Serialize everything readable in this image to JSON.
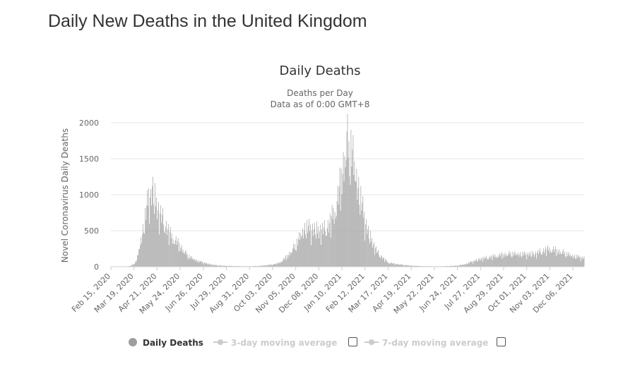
{
  "page": {
    "title": "Daily New Deaths in the United Kingdom"
  },
  "chart_data": {
    "type": "bar",
    "title": "Daily Deaths",
    "subtitle_lines": [
      "Deaths per Day",
      "Data as of 0:00 GMT+8"
    ],
    "ylabel": "Novel Coronavirus Daily Deaths",
    "xlabel": "",
    "ylim": [
      0,
      2000
    ],
    "yticks": [
      0,
      500,
      1000,
      1500,
      2000
    ],
    "grid": true,
    "legend_position": "bottom",
    "bar_color": "#9e9e9e",
    "x_tick_labels": [
      "Feb 15, 2020",
      "Mar 19, 2020",
      "Apr 21, 2020",
      "May 24, 2020",
      "Jun 26, 2020",
      "Jul 29, 2020",
      "Aug 31, 2020",
      "Oct 03, 2020",
      "Nov 05, 2020",
      "Dec 08, 2020",
      "Jan 10, 2021",
      "Feb 12, 2021",
      "Mar 17, 2021",
      "Apr 19, 2021",
      "May 22, 2021",
      "Jun 24, 2021",
      "Jul 27, 2021",
      "Aug 29, 2021",
      "Oct 01, 2021",
      "Nov 03, 2021",
      "Dec 06, 2021"
    ],
    "series": [
      {
        "name": "Daily Deaths",
        "x": [
          "Feb 15, 2020",
          "Feb 23, 2020",
          "Mar 02, 2020",
          "Mar 10, 2020",
          "Mar 15, 2020",
          "Mar 19, 2020",
          "Mar 23, 2020",
          "Mar 27, 2020",
          "Mar 31, 2020",
          "Apr 04, 2020",
          "Apr 08, 2020",
          "Apr 10, 2020",
          "Apr 12, 2020",
          "Apr 14, 2020",
          "Apr 16, 2020",
          "Apr 18, 2020",
          "Apr 21, 2020",
          "Apr 24, 2020",
          "Apr 28, 2020",
          "May 02, 2020",
          "May 06, 2020",
          "May 10, 2020",
          "May 14, 2020",
          "May 18, 2020",
          "May 24, 2020",
          "May 30, 2020",
          "Jun 05, 2020",
          "Jun 12, 2020",
          "Jun 19, 2020",
          "Jun 26, 2020",
          "Jul 05, 2020",
          "Jul 15, 2020",
          "Jul 29, 2020",
          "Aug 15, 2020",
          "Aug 31, 2020",
          "Sep 15, 2020",
          "Oct 03, 2020",
          "Oct 12, 2020",
          "Oct 20, 2020",
          "Oct 27, 2020",
          "Nov 05, 2020",
          "Nov 12, 2020",
          "Nov 19, 2020",
          "Nov 26, 2020",
          "Dec 01, 2020",
          "Dec 08, 2020",
          "Dec 15, 2020",
          "Dec 22, 2020",
          "Dec 27, 2020",
          "Jan 01, 2021",
          "Jan 05, 2021",
          "Jan 09, 2021",
          "Jan 13, 2021",
          "Jan 17, 2021",
          "Jan 20, 2021",
          "Jan 24, 2021",
          "Jan 28, 2021",
          "Feb 02, 2021",
          "Feb 07, 2021",
          "Feb 12, 2021",
          "Feb 18, 2021",
          "Feb 24, 2021",
          "Mar 02, 2021",
          "Mar 09, 2021",
          "Mar 17, 2021",
          "Mar 27, 2021",
          "Apr 08, 2021",
          "Apr 19, 2021",
          "May 05, 2021",
          "May 22, 2021",
          "Jun 08, 2021",
          "Jun 24, 2021",
          "Jul 05, 2021",
          "Jul 16, 2021",
          "Jul 27, 2021",
          "Aug 07, 2021",
          "Aug 18, 2021",
          "Aug 29, 2021",
          "Sep 09, 2021",
          "Sep 20, 2021",
          "Oct 01, 2021",
          "Oct 12, 2021",
          "Oct 22, 2021",
          "Nov 03, 2021",
          "Nov 14, 2021",
          "Nov 25, 2021",
          "Dec 06, 2021",
          "Dec 15, 2021",
          "Dec 22, 2021"
        ],
        "values": [
          0,
          0,
          1,
          5,
          15,
          40,
          90,
          280,
          470,
          690,
          930,
          1070,
          950,
          1120,
          1000,
          950,
          850,
          760,
          690,
          600,
          520,
          450,
          400,
          360,
          290,
          210,
          150,
          110,
          80,
          60,
          35,
          20,
          12,
          8,
          6,
          12,
          30,
          50,
          110,
          180,
          300,
          450,
          550,
          540,
          520,
          510,
          520,
          580,
          700,
          820,
          1000,
          1250,
          1450,
          1800,
          1600,
          1700,
          1400,
          1150,
          900,
          650,
          450,
          320,
          200,
          130,
          60,
          40,
          25,
          15,
          8,
          6,
          8,
          15,
          35,
          75,
          110,
          130,
          150,
          170,
          185,
          180,
          175,
          180,
          215,
          250,
          220,
          190,
          150,
          135,
          120
        ]
      }
    ],
    "legend": [
      {
        "label": "Daily Deaths",
        "enabled": true
      },
      {
        "label": "3-day moving average",
        "enabled": false
      },
      {
        "label": "7-day moving average",
        "enabled": false
      }
    ]
  }
}
